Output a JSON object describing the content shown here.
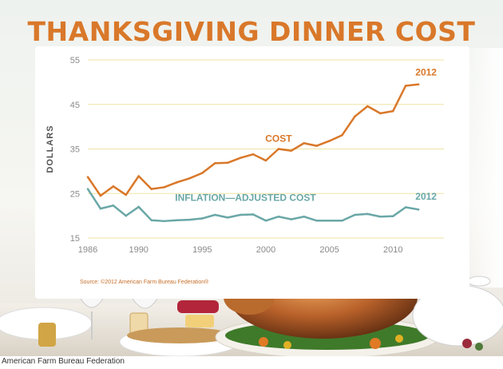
{
  "title": "THANKSGIVING DINNER COST",
  "source": "Source: ©2012 American Farm Bureau Federation®",
  "footer_credit": "American Farm Bureau Federation",
  "colors": {
    "cost": "#d9782a",
    "inflation": "#6aa7a7",
    "grid": "#efe3a3",
    "axis_text": "#8a8a8a"
  },
  "chart_data": {
    "type": "line",
    "ylabel": "DOLLARS",
    "xlabel": "",
    "xlim": [
      1986,
      2013
    ],
    "ylim": [
      15,
      55
    ],
    "x_ticks": [
      1986,
      1990,
      1995,
      2000,
      2005,
      2010
    ],
    "y_ticks": [
      15,
      25,
      35,
      45,
      55
    ],
    "grid": "horizontal",
    "x": [
      1986,
      1987,
      1988,
      1989,
      1990,
      1991,
      1992,
      1993,
      1994,
      1995,
      1996,
      1997,
      1998,
      1999,
      2000,
      2001,
      2002,
      2003,
      2004,
      2005,
      2006,
      2007,
      2008,
      2009,
      2010,
      2011,
      2012
    ],
    "series": [
      {
        "name": "COST",
        "end_label": "2012",
        "values": [
          28.7,
          24.5,
          26.6,
          24.7,
          28.9,
          26.0,
          26.4,
          27.5,
          28.4,
          29.6,
          31.8,
          31.9,
          33.0,
          33.8,
          32.4,
          35.0,
          34.6,
          36.3,
          35.7,
          36.8,
          38.1,
          42.3,
          44.6,
          43.0,
          43.5,
          49.2,
          49.5
        ]
      },
      {
        "name": "INFLATION—ADJUSTED COST",
        "end_label": "2012",
        "values": [
          26.0,
          21.6,
          22.3,
          20.0,
          22.0,
          19.0,
          18.8,
          19.0,
          19.1,
          19.4,
          20.2,
          19.6,
          20.2,
          20.3,
          18.9,
          19.8,
          19.2,
          19.8,
          18.9,
          18.9,
          18.9,
          20.2,
          20.4,
          19.8,
          19.9,
          21.9,
          21.4
        ]
      }
    ]
  }
}
